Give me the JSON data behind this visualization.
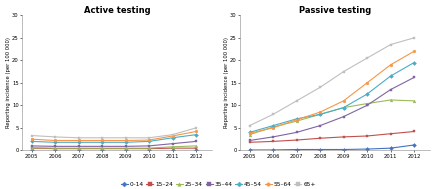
{
  "years": [
    2005,
    2006,
    2007,
    2008,
    2009,
    2010,
    2011,
    2012
  ],
  "active": {
    "0-14": [
      0.1,
      0.1,
      0.1,
      0.1,
      0.1,
      0.1,
      0.1,
      0.1
    ],
    "15-24": [
      0.5,
      0.4,
      0.4,
      0.4,
      0.4,
      0.4,
      0.5,
      0.5
    ],
    "25-34": [
      0.6,
      0.5,
      0.5,
      0.5,
      0.5,
      0.5,
      0.8,
      1.0
    ],
    "35-44": [
      1.0,
      0.9,
      0.9,
      0.9,
      0.9,
      1.0,
      1.5,
      2.0
    ],
    "45-54": [
      2.0,
      1.8,
      1.8,
      1.8,
      1.8,
      2.0,
      2.8,
      3.5
    ],
    "55-64": [
      2.5,
      2.2,
      2.2,
      2.2,
      2.2,
      2.3,
      3.2,
      4.2
    ],
    "65+": [
      3.3,
      3.0,
      2.8,
      2.8,
      2.8,
      2.8,
      3.5,
      5.0
    ]
  },
  "passive": {
    "0-14": [
      0.1,
      0.1,
      0.2,
      0.2,
      0.2,
      0.3,
      0.5,
      1.2
    ],
    "15-24": [
      1.8,
      2.0,
      2.3,
      2.7,
      3.0,
      3.2,
      3.7,
      4.2
    ],
    "25-34": [
      3.5,
      5.2,
      6.5,
      8.0,
      9.5,
      10.4,
      11.2,
      11.0
    ],
    "35-44": [
      2.2,
      3.0,
      4.0,
      5.5,
      7.5,
      10.0,
      13.5,
      16.2
    ],
    "45-54": [
      4.0,
      5.5,
      7.0,
      8.0,
      9.5,
      12.5,
      16.5,
      19.5
    ],
    "55-64": [
      3.8,
      5.0,
      6.8,
      8.5,
      11.0,
      15.0,
      19.0,
      22.0
    ],
    "65+": [
      5.5,
      8.0,
      11.0,
      14.0,
      17.5,
      20.5,
      23.5,
      25.0
    ]
  },
  "colors": {
    "0-14": "#4472c4",
    "15-24": "#c0504d",
    "25-34": "#9bbb59",
    "35-44": "#8064a2",
    "45-54": "#4bacc6",
    "55-64": "#f79646",
    "65+": "#bfbfbf"
  },
  "markers": {
    "0-14": "D",
    "15-24": "s",
    "25-34": "^",
    "35-44": "s",
    "45-54": "D",
    "55-64": "o",
    "65+": "s"
  },
  "ylim": [
    0,
    30
  ],
  "yticks": [
    0,
    5,
    10,
    15,
    20,
    25,
    30
  ],
  "title_active": "Active testing",
  "title_passive": "Passive testing",
  "ylabel": "Reporting incidence (per 100 000)",
  "legend_labels": [
    "0–14",
    "15–24",
    "25–34",
    "35–44",
    "45–54",
    "55–64",
    "65+"
  ],
  "legend_keys": [
    "0-14",
    "15-24",
    "25-34",
    "35-44",
    "45-54",
    "55-64",
    "65+"
  ],
  "background": "#ffffff",
  "fig_width": 4.36,
  "fig_height": 1.89,
  "dpi": 100
}
